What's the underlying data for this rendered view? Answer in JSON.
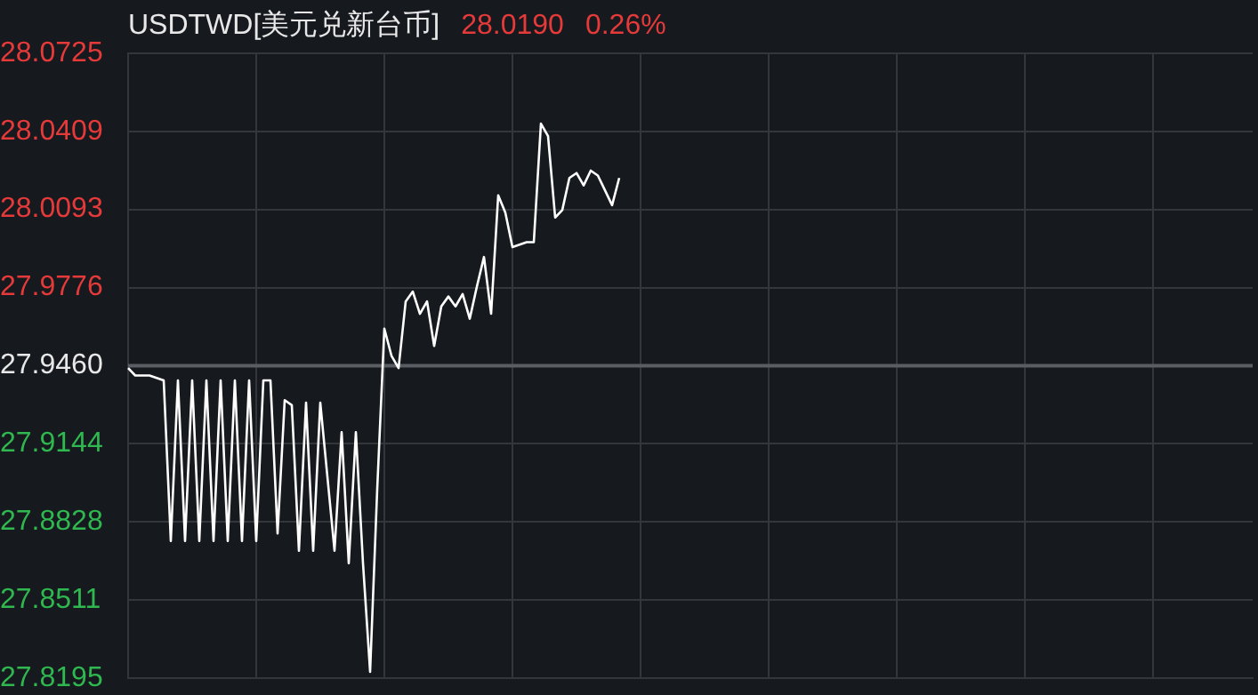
{
  "chart_data": {
    "type": "line",
    "title": "USDTWD[美元兑新台币]",
    "annotations": [
      "28.0190",
      "0.26%"
    ],
    "categories": [
      null,
      null,
      null,
      null,
      null,
      null,
      null,
      null,
      null,
      null,
      null,
      null,
      null,
      null,
      null,
      null,
      null,
      null,
      null,
      null,
      null,
      null,
      null,
      null,
      null,
      null,
      null,
      null,
      null,
      null,
      null,
      null,
      null,
      null,
      null,
      null,
      null,
      null,
      null,
      null,
      null,
      null,
      null,
      null,
      null,
      null,
      null,
      null,
      null,
      null,
      null,
      null,
      null,
      null,
      null,
      null,
      null,
      null,
      null,
      null,
      null,
      null,
      null,
      null,
      null,
      null,
      null,
      null,
      null,
      null,
      null,
      null,
      null,
      null,
      null,
      null,
      null,
      null,
      null,
      null,
      null,
      null,
      null,
      null,
      null,
      null,
      null,
      null,
      null,
      null,
      null,
      null,
      null,
      null,
      null,
      null,
      null,
      null,
      null,
      null,
      null,
      null,
      null,
      null,
      null,
      null,
      null,
      null,
      null,
      null,
      null,
      null,
      null,
      null,
      null,
      null,
      null,
      null,
      null,
      null,
      null,
      null,
      null,
      null,
      null,
      null,
      null,
      null,
      null,
      null,
      null,
      null,
      null,
      null,
      null,
      null,
      null,
      null,
      null,
      null,
      null,
      null,
      null,
      null,
      null,
      null,
      null,
      null,
      null,
      null,
      null,
      null,
      null,
      null,
      null,
      null,
      null,
      null,
      null
    ],
    "series": [
      {
        "color": "#ffffff",
        "values": [
          27.945,
          27.942,
          27.942,
          27.942,
          27.941,
          27.94,
          27.875,
          27.94,
          27.875,
          27.94,
          27.875,
          27.94,
          27.875,
          27.94,
          27.875,
          27.94,
          27.875,
          27.94,
          27.875,
          27.94,
          27.94,
          27.878,
          27.932,
          27.93,
          27.871,
          27.931,
          27.871,
          27.931,
          27.901,
          27.871,
          27.919,
          27.866,
          27.919,
          27.866,
          27.822,
          27.896,
          27.961,
          27.95,
          27.945,
          27.972,
          27.976,
          27.967,
          27.972,
          27.954,
          27.97,
          27.974,
          27.97,
          27.975,
          27.965,
          27.978,
          27.99,
          27.967,
          28.015,
          28.008,
          27.994,
          27.995,
          27.996,
          27.996,
          28.044,
          28.039,
          28.006,
          28.009,
          28.022,
          28.024,
          28.019,
          28.025,
          28.023,
          28.017,
          28.011,
          28.022,
          null,
          null,
          null,
          null,
          null,
          null,
          null,
          null,
          null,
          null,
          null,
          null,
          null,
          null,
          null,
          null,
          null,
          null,
          null,
          null,
          null,
          null,
          null,
          null,
          null,
          null,
          null,
          null,
          null,
          null,
          null,
          null,
          null,
          null,
          null,
          null,
          null,
          null,
          null,
          null,
          null,
          null,
          null,
          null,
          null,
          null,
          null,
          null,
          null,
          null,
          null,
          null,
          null,
          null,
          null,
          null,
          null,
          null,
          null,
          null,
          null,
          null,
          null,
          null,
          null,
          null,
          null,
          null,
          null,
          null,
          null,
          null,
          null,
          null,
          null,
          null,
          null,
          null,
          null,
          null,
          null,
          null,
          null,
          null,
          null,
          null,
          null,
          null,
          null
        ]
      }
    ],
    "ylim": [
      27.8195,
      28.0725
    ],
    "yticks": [
      27.8195,
      27.8511,
      27.8828,
      27.9144,
      {
        "value": 27.946,
        "label": "27.9460"
      },
      27.9776,
      28.0093,
      28.0409,
      28.0725
    ],
    "ref_lines": [
      {
        "axis": "y",
        "value": 27.946,
        "color": "#5a5d63"
      }
    ],
    "grid": true,
    "legend": false,
    "tick_labels": "y",
    "marker": "none",
    "line_style": "solid"
  }
}
